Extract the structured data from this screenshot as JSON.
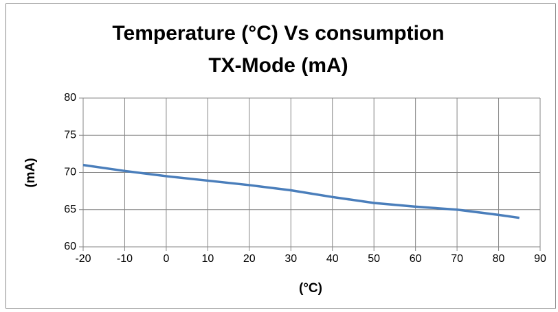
{
  "chart_data": {
    "type": "line",
    "title": [
      "Temperature (°C) Vs consumption",
      "TX-Mode (mA)"
    ],
    "xlabel": "(°C)",
    "ylabel": "(mA)",
    "x": [
      -20,
      -10,
      0,
      10,
      20,
      30,
      40,
      50,
      60,
      70,
      80,
      85
    ],
    "series": [
      {
        "name": "consumption",
        "color": "#4a7ebb",
        "values": [
          71,
          70.2,
          69.5,
          68.9,
          68.3,
          67.6,
          66.7,
          65.9,
          65.4,
          65.0,
          64.3,
          63.9
        ]
      }
    ],
    "xlim": [
      -20,
      90
    ],
    "xticks": [
      -20,
      -10,
      0,
      10,
      20,
      30,
      40,
      50,
      60,
      70,
      80,
      90
    ],
    "ylim": [
      60,
      80
    ],
    "yticks": [
      60,
      65,
      70,
      75,
      80
    ],
    "grid": true
  }
}
